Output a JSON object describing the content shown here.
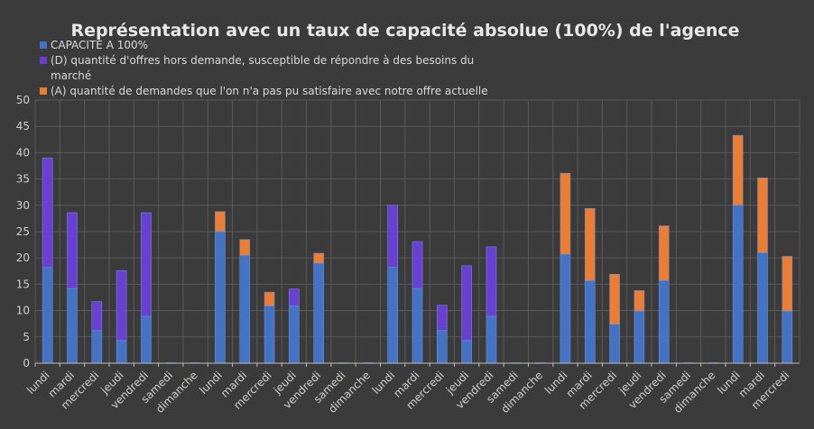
{
  "chart_data": {
    "type": "bar",
    "stacked": true,
    "title": "Représentation avec un taux de capacité absolue (100%) de l'agence",
    "xlabel": "",
    "ylabel": "",
    "ylim": [
      0,
      50
    ],
    "yticks": [
      0,
      5,
      10,
      15,
      20,
      25,
      30,
      35,
      40,
      45,
      50
    ],
    "grid": true,
    "legend_position": "top-left",
    "categories": [
      "lundi",
      "mardi",
      "mercredi",
      "jeudi",
      "vendredi",
      "samedi",
      "dimanche",
      "lundi",
      "mardi",
      "mercredi",
      "jeudi",
      "vendredi",
      "samedi",
      "dimanche",
      "lundi",
      "mardi",
      "mercredi",
      "jeudi",
      "vendredi",
      "samedi",
      "dimanche",
      "lundi",
      "mardi",
      "mercredi",
      "jeudi",
      "vendredi",
      "samedi",
      "dimanche",
      "lundi",
      "mardi",
      "mercredi"
    ],
    "series": [
      {
        "name": "CAPACITE A 100%",
        "color": "#4472c4",
        "values": [
          18.2,
          14.2,
          6.2,
          4.3,
          8.9,
          0,
          0,
          25,
          20.5,
          10.9,
          10.9,
          19,
          0,
          0,
          18.2,
          14.2,
          6.2,
          4.3,
          8.9,
          0,
          0,
          20.7,
          15.7,
          7.4,
          9.9,
          15.7,
          0,
          0,
          30,
          21,
          9.9
        ]
      },
      {
        "name": "(D) quantité d'offres hors demande, susceptible de répondre à des besoins du marché",
        "color": "#6a3fd4",
        "values": [
          20.8,
          14.4,
          5.5,
          13.3,
          19.7,
          0,
          0,
          0,
          0,
          0,
          3.2,
          0,
          0,
          0,
          11.8,
          8.9,
          4.8,
          14.2,
          13.2,
          0,
          0,
          0,
          0,
          0,
          0,
          0,
          0,
          0,
          0,
          0,
          0
        ]
      },
      {
        "name": "(A) quantité de demandes que l'on n'a pas pu satisfaire avec notre offre actuelle",
        "color": "#ed7d31",
        "values": [
          0,
          0,
          0,
          0,
          0,
          0,
          0,
          3.8,
          3,
          2.6,
          0,
          1.9,
          0,
          0,
          0,
          0,
          0,
          0,
          0,
          0,
          0,
          15.4,
          13.7,
          9.5,
          3.9,
          10.4,
          0,
          0,
          13.3,
          14.2,
          10.4
        ]
      }
    ]
  }
}
